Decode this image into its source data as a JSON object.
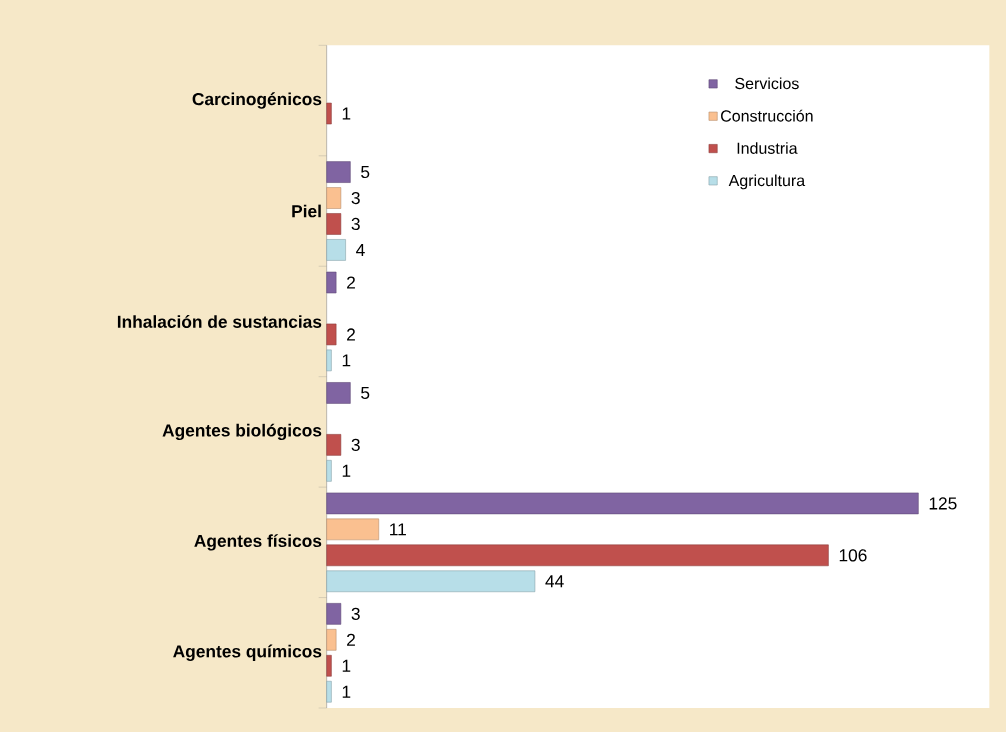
{
  "chart_data": {
    "type": "bar",
    "orientation": "horizontal",
    "categories": [
      "Carcinogénicos",
      "Piel",
      "Inhalación de sustancias",
      "Agentes biológicos",
      "Agentes físicos",
      "Agentes químicos"
    ],
    "series": [
      {
        "name": "Servicios",
        "color": "#8064a2",
        "values": [
          null,
          5,
          2,
          5,
          125,
          3
        ]
      },
      {
        "name": "Construcción",
        "color": "#fac090",
        "values": [
          null,
          3,
          null,
          null,
          11,
          2
        ]
      },
      {
        "name": "Industria",
        "color": "#c0504d",
        "values": [
          1,
          3,
          2,
          3,
          106,
          1
        ]
      },
      {
        "name": "Agricultura",
        "color": "#b7dee8",
        "values": [
          null,
          4,
          1,
          1,
          44,
          1
        ]
      }
    ],
    "data_labels": true,
    "legend": "top right"
  }
}
